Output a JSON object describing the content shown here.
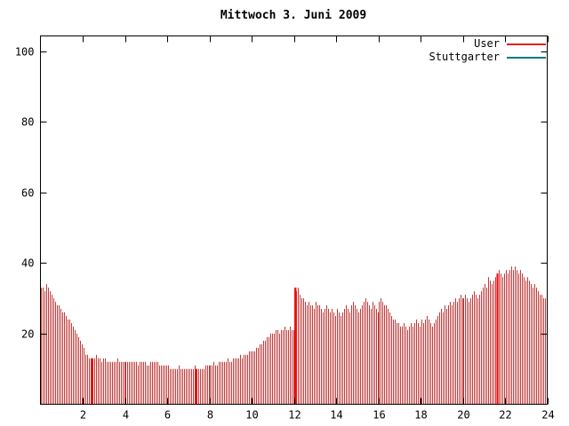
{
  "title": "Mittwoch 3. Juni 2009",
  "legend": {
    "items": [
      {
        "label": "User",
        "color": "#e02020"
      },
      {
        "label": "Stuttgarter",
        "color": "#00797d"
      }
    ]
  },
  "chart_data": {
    "type": "bar",
    "title": "Mittwoch 3. Juni 2009",
    "xlabel": "",
    "ylabel": "",
    "xlim": [
      0,
      24
    ],
    "ylim": [
      0,
      100
    ],
    "xticks": [
      2,
      4,
      6,
      8,
      10,
      12,
      14,
      16,
      18,
      20,
      22,
      24
    ],
    "yticks": [
      20,
      40,
      60,
      80,
      100
    ],
    "samples_per_hour": 12,
    "bar_color": "#c03a3a",
    "highlight_color": "#ff0000",
    "highlight_x": [
      2.4,
      7.35,
      12.05,
      21.6
    ],
    "legend_position": "top-right",
    "grid": false,
    "series": [
      {
        "name": "User",
        "color": "#e02020",
        "values": [
          33,
          33,
          32,
          34,
          33,
          32,
          31,
          30,
          29,
          28,
          28,
          27,
          26,
          26,
          25,
          24,
          24,
          23,
          22,
          21,
          20,
          19,
          18,
          17,
          16,
          14,
          14,
          13,
          13,
          13,
          13,
          14,
          13,
          13,
          12,
          13,
          13,
          12,
          12,
          12,
          12,
          12,
          12,
          13,
          12,
          12,
          12,
          12,
          12,
          12,
          12,
          12,
          12,
          12,
          12,
          11,
          12,
          12,
          12,
          12,
          11,
          11,
          12,
          12,
          12,
          12,
          12,
          11,
          11,
          11,
          11,
          11,
          11,
          10,
          10,
          10,
          10,
          10,
          11,
          10,
          10,
          10,
          10,
          10,
          10,
          10,
          10,
          11,
          10,
          10,
          10,
          10,
          10,
          11,
          11,
          11,
          11,
          11,
          12,
          11,
          11,
          12,
          12,
          12,
          12,
          12,
          13,
          12,
          12,
          13,
          13,
          13,
          13,
          14,
          13,
          14,
          14,
          14,
          15,
          15,
          15,
          15,
          16,
          16,
          17,
          17,
          18,
          18,
          19,
          19,
          20,
          20,
          20,
          21,
          21,
          20,
          21,
          21,
          22,
          21,
          21,
          22,
          21,
          21,
          33,
          32,
          33,
          31,
          30,
          30,
          29,
          28,
          29,
          28,
          28,
          27,
          29,
          28,
          28,
          27,
          26,
          27,
          28,
          27,
          26,
          27,
          26,
          25,
          27,
          26,
          25,
          26,
          27,
          28,
          27,
          26,
          28,
          29,
          28,
          27,
          26,
          27,
          28,
          29,
          30,
          29,
          28,
          27,
          29,
          28,
          27,
          26,
          29,
          30,
          29,
          28,
          28,
          27,
          26,
          25,
          24,
          24,
          23,
          23,
          22,
          22,
          23,
          22,
          21,
          22,
          23,
          22,
          23,
          24,
          23,
          22,
          24,
          23,
          24,
          25,
          24,
          23,
          22,
          23,
          24,
          25,
          26,
          27,
          26,
          28,
          27,
          28,
          29,
          28,
          29,
          30,
          29,
          30,
          31,
          30,
          30,
          31,
          30,
          29,
          30,
          31,
          32,
          31,
          30,
          31,
          32,
          33,
          34,
          33,
          36,
          35,
          34,
          35,
          36,
          37,
          38,
          37,
          36,
          37,
          38,
          37,
          38,
          39,
          38,
          39,
          38,
          37,
          38,
          37,
          36,
          35,
          36,
          35,
          34,
          33,
          34,
          33,
          32,
          31,
          31,
          30,
          30,
          29
        ]
      },
      {
        "name": "Stuttgarter",
        "color": "#00797d",
        "values": []
      }
    ]
  }
}
